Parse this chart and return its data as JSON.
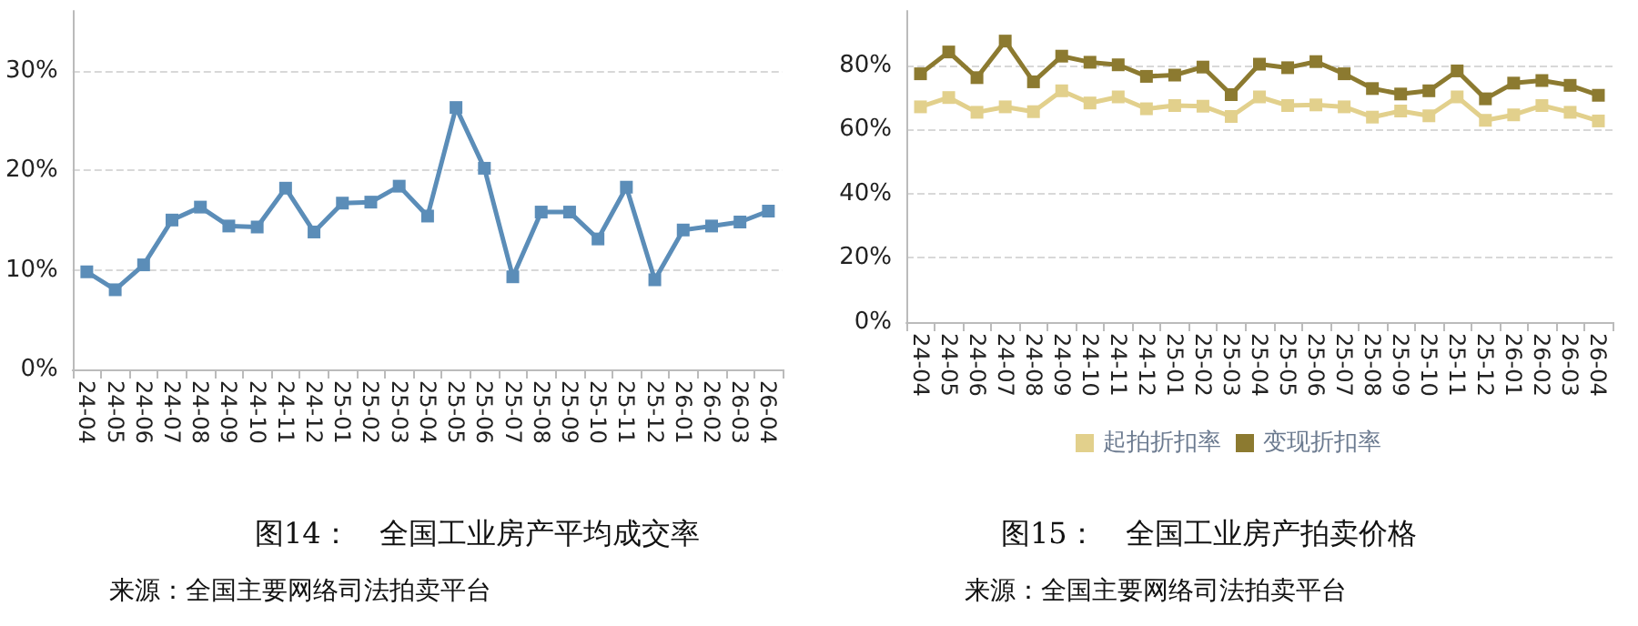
{
  "chart_data": [
    {
      "type": "line",
      "title": "图14：　全国工业房产平均成交率",
      "annotations": [
        "来源：全国主要网络司法拍卖平台"
      ],
      "categories": [
        "24-04",
        "24-05",
        "24-06",
        "24-07",
        "24-08",
        "24-09",
        "24-10",
        "24-11",
        "24-12",
        "25-01",
        "25-02",
        "25-03",
        "25-04",
        "25-05",
        "25-06",
        "25-07",
        "25-08",
        "25-09",
        "25-10",
        "25-11",
        "25-12",
        "26-01",
        "26-02",
        "26-03",
        "26-04"
      ],
      "series": [
        {
          "color": "#5b8db8",
          "values": [
            9.8,
            8.0,
            10.5,
            15.0,
            16.3,
            14.4,
            14.3,
            18.2,
            13.8,
            16.7,
            16.8,
            18.4,
            15.4,
            26.3,
            20.2,
            9.3,
            15.8,
            15.8,
            13.1,
            18.3,
            9.0,
            14.0,
            14.4,
            14.8,
            15.9
          ]
        }
      ],
      "ylim": [
        0,
        36
      ],
      "yticks": [
        {
          "value": 0,
          "label": "0%"
        },
        {
          "value": 10,
          "label": "10%"
        },
        {
          "value": 20,
          "label": "20%"
        },
        {
          "value": 30,
          "label": "30%"
        }
      ],
      "grid": "y",
      "legend": false,
      "marker": "square",
      "line_style": "solid"
    },
    {
      "type": "line",
      "title": "图15：　全国工业房产拍卖价格",
      "annotations": [
        "来源：全国主要网络司法拍卖平台"
      ],
      "categories": [
        "24-04",
        "24-05",
        "24-06",
        "24-07",
        "24-08",
        "24-09",
        "24-10",
        "24-11",
        "24-12",
        "25-01",
        "25-02",
        "25-03",
        "25-04",
        "25-05",
        "25-06",
        "25-07",
        "25-08",
        "25-09",
        "25-10",
        "25-11",
        "25-12",
        "26-01",
        "26-02",
        "26-03",
        "26-04"
      ],
      "series": [
        {
          "name": "起拍折扣率",
          "color": "#e2d08c",
          "values": [
            67.1,
            70.0,
            65.4,
            67.1,
            65.6,
            72.1,
            68.3,
            70.2,
            66.5,
            67.5,
            67.3,
            64.1,
            70.2,
            67.5,
            67.7,
            67.1,
            63.9,
            65.8,
            64.3,
            70.2,
            62.9,
            64.6,
            67.5,
            65.4,
            62.7
          ]
        },
        {
          "name": "变现折扣率",
          "color": "#8c7a30",
          "values": [
            77.4,
            84.2,
            76.2,
            87.6,
            74.9,
            82.9,
            81.0,
            80.2,
            76.6,
            77.0,
            79.5,
            70.9,
            80.4,
            79.3,
            81.2,
            77.4,
            72.8,
            71.1,
            72.1,
            78.3,
            69.6,
            74.5,
            75.3,
            73.8,
            70.7
          ]
        }
      ],
      "ylim": [
        0,
        97
      ],
      "yticks": [
        {
          "value": 0,
          "label": "0%"
        },
        {
          "value": 20,
          "label": "20%"
        },
        {
          "value": 40,
          "label": "40%"
        },
        {
          "value": 60,
          "label": "60%"
        },
        {
          "value": 80,
          "label": "80%"
        }
      ],
      "grid": "y",
      "legend": "bottom",
      "marker": "square",
      "line_style": "solid"
    }
  ]
}
